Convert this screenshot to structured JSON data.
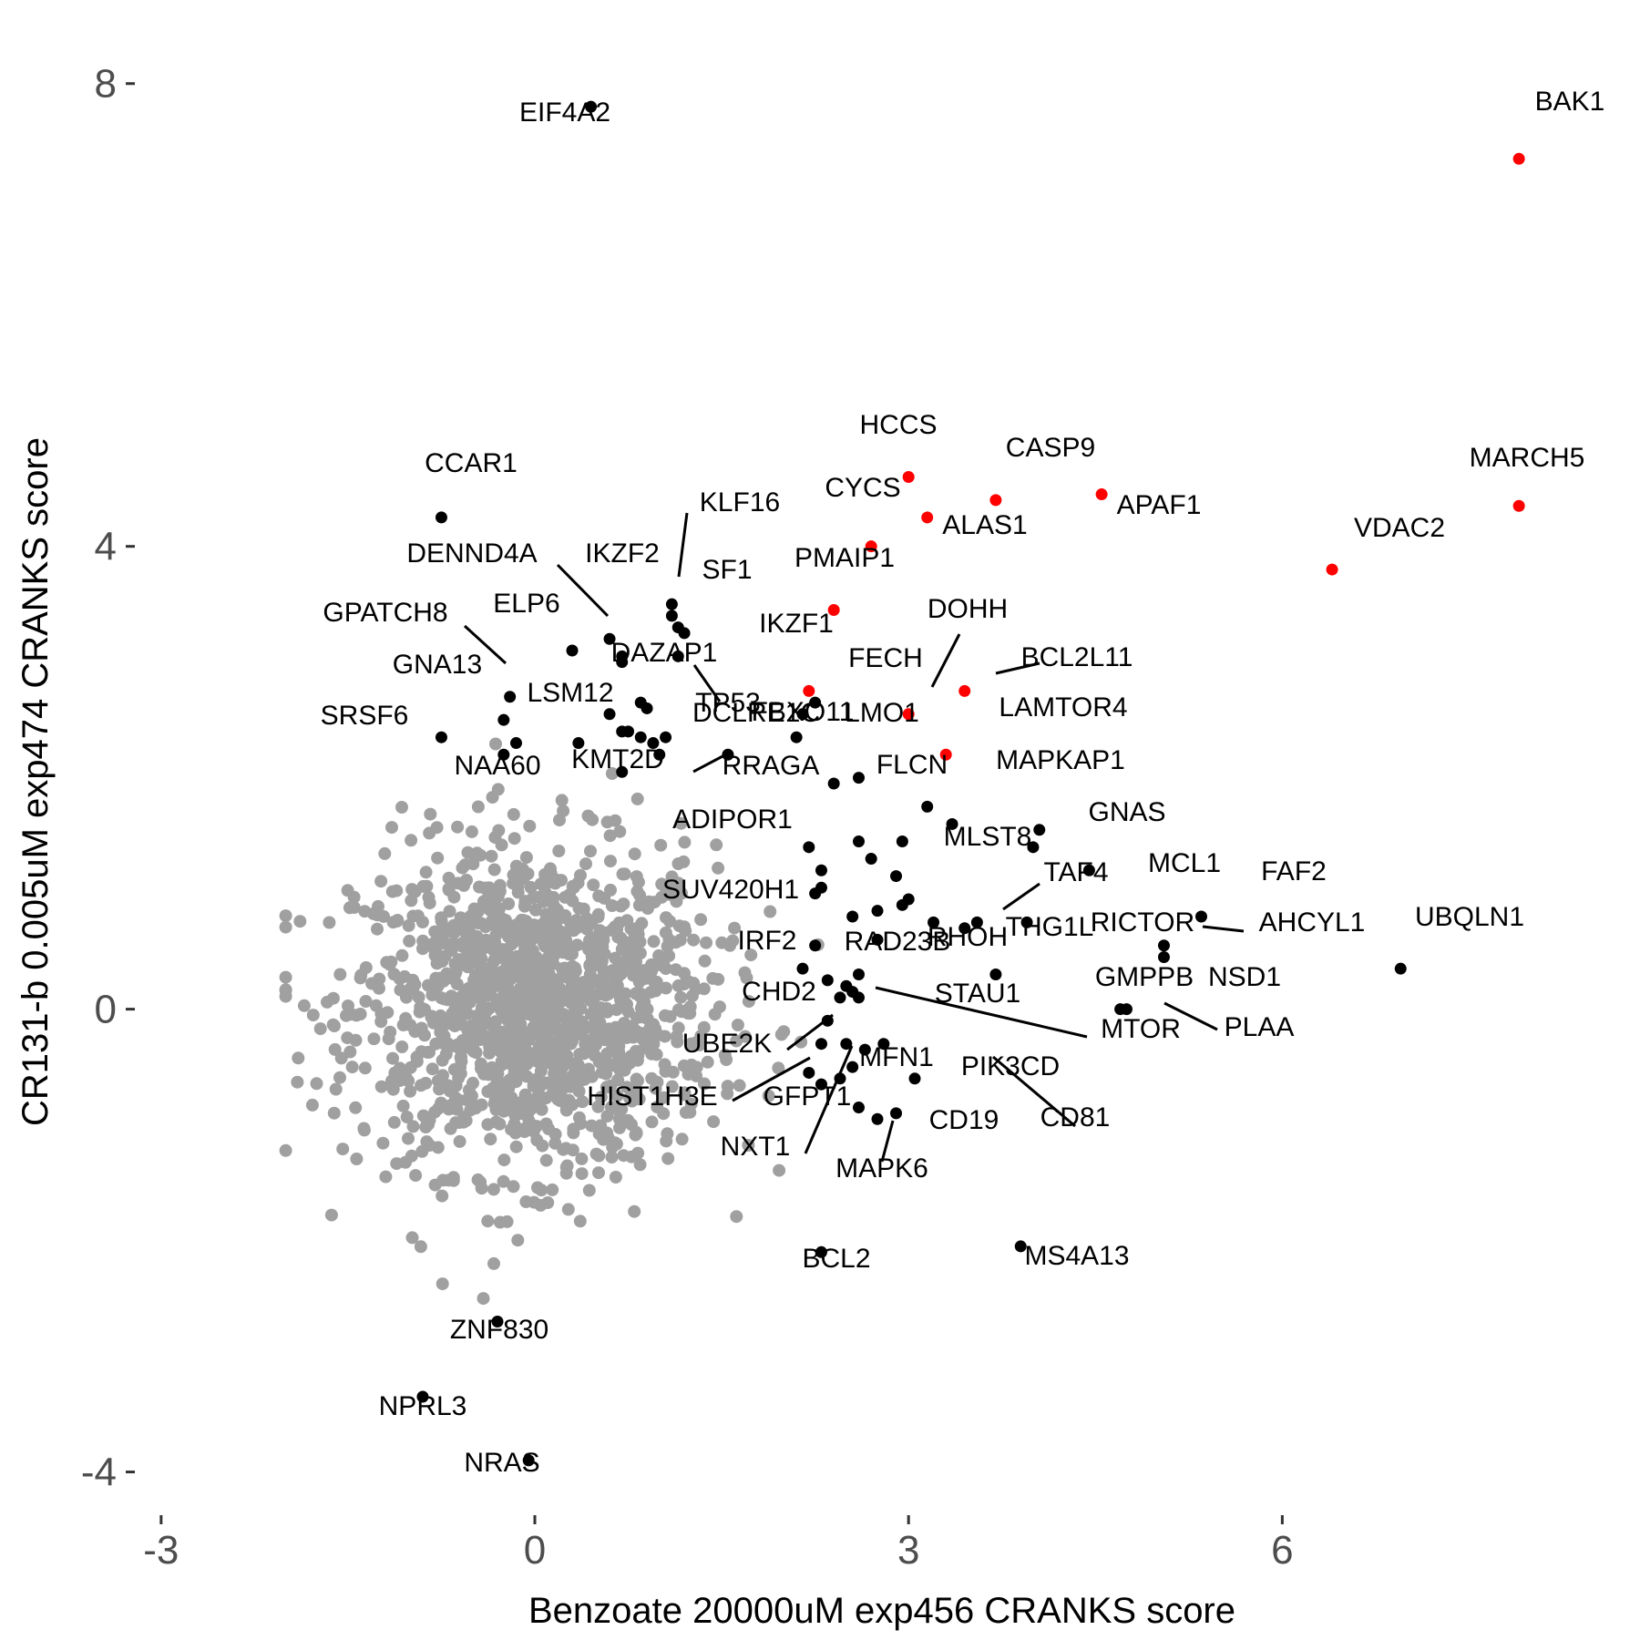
{
  "chart_data": {
    "type": "scatter",
    "xlabel": "Benzoate 20000uM exp456 CRANKS score",
    "ylabel": "CR131-b 0.005uM exp474 CRANKS score",
    "xlim": [
      -3.05,
      8.25
    ],
    "ylim": [
      -4.35,
      8.25
    ],
    "x_ticks": [
      {
        "value": -3,
        "label": "-3"
      },
      {
        "value": 0,
        "label": "0"
      },
      {
        "value": 3,
        "label": "3"
      },
      {
        "value": 6,
        "label": "6"
      }
    ],
    "y_ticks": [
      {
        "value": -4,
        "label": "-4"
      },
      {
        "value": 0,
        "label": "0"
      },
      {
        "value": 4,
        "label": "4"
      },
      {
        "value": 8,
        "label": "8"
      }
    ],
    "grid": false,
    "legend": "none",
    "colors": {
      "background_points": "#a0a0a0",
      "hit_points": "#000000",
      "top_hit_points": "#ff0000",
      "tick_text": "#4d4d4d"
    },
    "background_cloud": {
      "description_role": "unlabeled genes",
      "count": 1400,
      "x_center": 0.0,
      "y_center": 0.0,
      "x_sd": 0.72,
      "y_sd": 0.7
    },
    "labeled_points": [
      {
        "gene": "BAK1",
        "x": 7.9,
        "y": 7.35,
        "color": "red"
      },
      {
        "gene": "MARCH5",
        "x": 7.9,
        "y": 4.35,
        "color": "red"
      },
      {
        "gene": "VDAC2",
        "x": 6.4,
        "y": 3.8,
        "color": "red"
      },
      {
        "gene": "APAF1",
        "x": 4.55,
        "y": 4.45,
        "color": "red"
      },
      {
        "gene": "CASP9",
        "x": 3.7,
        "y": 4.4,
        "color": "red"
      },
      {
        "gene": "HCCS",
        "x": 3.0,
        "y": 4.6,
        "color": "red"
      },
      {
        "gene": "ALAS1",
        "x": 3.15,
        "y": 4.25,
        "color": "red"
      },
      {
        "gene": "CYCS",
        "x": 2.7,
        "y": 4.0,
        "color": "red"
      },
      {
        "gene": "PMAIP1",
        "x": 2.4,
        "y": 3.45,
        "color": "red"
      },
      {
        "gene": "IKZF1",
        "x": 2.2,
        "y": 2.75,
        "color": "red"
      },
      {
        "gene": "DOHH",
        "x": 3.0,
        "y": 2.55,
        "color": "red"
      },
      {
        "gene": "BCL2L11",
        "x": 3.45,
        "y": 2.75,
        "color": "red"
      },
      {
        "gene": "LAMTOR4",
        "x": 3.3,
        "y": 2.2,
        "color": "red"
      },
      {
        "gene": "EIF4A2",
        "x": 0.45,
        "y": 7.8,
        "color": "black"
      },
      {
        "gene": "CCAR1",
        "x": -0.75,
        "y": 4.25,
        "color": "black"
      },
      {
        "gene": "DENND4A",
        "x": 0.6,
        "y": 3.2,
        "color": "black"
      },
      {
        "gene": "IKZF2",
        "x": 0.7,
        "y": 3.0,
        "color": "black"
      },
      {
        "gene": "KLF16",
        "x": 1.1,
        "y": 3.5,
        "color": "black"
      },
      {
        "gene": "SF1",
        "x": 1.15,
        "y": 3.3,
        "color": "black"
      },
      {
        "gene": "ELP6",
        "x": 0.3,
        "y": 3.1,
        "color": "black"
      },
      {
        "gene": "GPATCH8",
        "x": -0.2,
        "y": 2.7,
        "color": "black"
      },
      {
        "gene": "GNA13",
        "x": -0.25,
        "y": 2.5,
        "color": "black"
      },
      {
        "gene": "DAZAP1",
        "x": 1.15,
        "y": 3.05,
        "color": "black"
      },
      {
        "gene": "LSM12",
        "x": 0.7,
        "y": 2.4,
        "color": "black"
      },
      {
        "gene": "SRSF6",
        "x": -0.75,
        "y": 2.35,
        "color": "black"
      },
      {
        "gene": "TP53",
        "x": 1.05,
        "y": 2.35,
        "color": "black"
      },
      {
        "gene": "NAA60",
        "x": -0.25,
        "y": 2.2,
        "color": "black"
      },
      {
        "gene": "KMT2D",
        "x": 1.0,
        "y": 2.2,
        "color": "black"
      },
      {
        "gene": "FBXO11",
        "x": 1.55,
        "y": 2.2,
        "color": "black"
      },
      {
        "gene": "RRAGA",
        "x": 2.1,
        "y": 2.35,
        "color": "black"
      },
      {
        "gene": "FECH",
        "x": 2.15,
        "y": 2.55,
        "color": "black"
      },
      {
        "gene": "DCLRE1C",
        "x": 2.4,
        "y": 1.95,
        "color": "black"
      },
      {
        "gene": "LMO1",
        "x": 2.6,
        "y": 2.0,
        "color": "black"
      },
      {
        "gene": "FLCN",
        "x": 3.15,
        "y": 1.75,
        "color": "black"
      },
      {
        "gene": "ADIPOR1",
        "x": 2.2,
        "y": 1.4,
        "color": "black"
      },
      {
        "gene": "MAPKAP1",
        "x": 3.35,
        "y": 1.6,
        "color": "black"
      },
      {
        "gene": "GNAS",
        "x": 4.05,
        "y": 1.55,
        "color": "black"
      },
      {
        "gene": "MLST8",
        "x": 4.0,
        "y": 1.4,
        "color": "black"
      },
      {
        "gene": "MCL1",
        "x": 4.45,
        "y": 1.2,
        "color": "black"
      },
      {
        "gene": "FAF2",
        "x": 5.35,
        "y": 0.8,
        "color": "black"
      },
      {
        "gene": "SUV420H1",
        "x": 2.25,
        "y": 1.0,
        "color": "black"
      },
      {
        "gene": "TAF4",
        "x": 3.45,
        "y": 0.7,
        "color": "black"
      },
      {
        "gene": "THG1L",
        "x": 3.2,
        "y": 0.75,
        "color": "black"
      },
      {
        "gene": "RICTOR",
        "x": 3.95,
        "y": 0.75,
        "color": "black"
      },
      {
        "gene": "AHCYL1",
        "x": 5.05,
        "y": 0.55,
        "color": "black"
      },
      {
        "gene": "UBQLN1",
        "x": 6.95,
        "y": 0.35,
        "color": "black"
      },
      {
        "gene": "NSD1",
        "x": 5.05,
        "y": 0.45,
        "color": "black"
      },
      {
        "gene": "RHOH",
        "x": 3.7,
        "y": 0.3,
        "color": "black"
      },
      {
        "gene": "IRF2",
        "x": 2.15,
        "y": 0.35,
        "color": "black"
      },
      {
        "gene": "RAD23B",
        "x": 2.5,
        "y": 0.2,
        "color": "black"
      },
      {
        "gene": "GMPPB",
        "x": 4.7,
        "y": 0.0,
        "color": "black"
      },
      {
        "gene": "PLAA",
        "x": 4.75,
        "y": 0.0,
        "color": "black"
      },
      {
        "gene": "STAU1",
        "x": 2.55,
        "y": 0.15,
        "color": "black"
      },
      {
        "gene": "MTOR",
        "x": 2.6,
        "y": 0.1,
        "color": "black"
      },
      {
        "gene": "CHD2",
        "x": 2.35,
        "y": -0.1,
        "color": "black"
      },
      {
        "gene": "UBE2K",
        "x": 2.3,
        "y": -0.3,
        "color": "black"
      },
      {
        "gene": "HIST1H3E",
        "x": 2.2,
        "y": -0.55,
        "color": "black"
      },
      {
        "gene": "PIK3CD",
        "x": 2.8,
        "y": -0.3,
        "color": "black"
      },
      {
        "gene": "CD81",
        "x": 3.05,
        "y": -0.6,
        "color": "black"
      },
      {
        "gene": "MFN1",
        "x": 2.6,
        "y": -0.85,
        "color": "black"
      },
      {
        "gene": "GFPT1",
        "x": 2.55,
        "y": -0.5,
        "color": "black"
      },
      {
        "gene": "CD19",
        "x": 2.9,
        "y": -0.9,
        "color": "black"
      },
      {
        "gene": "MAPK6",
        "x": 2.75,
        "y": -0.95,
        "color": "black"
      },
      {
        "gene": "NXT1",
        "x": 2.45,
        "y": -0.6,
        "color": "black"
      },
      {
        "gene": "BCL2",
        "x": 2.3,
        "y": -2.1,
        "color": "black"
      },
      {
        "gene": "MS4A13",
        "x": 3.9,
        "y": -2.05,
        "color": "black"
      },
      {
        "gene": "ZNF830",
        "x": -0.3,
        "y": -2.7,
        "color": "black"
      },
      {
        "gene": "NPRL3",
        "x": -0.9,
        "y": -3.35,
        "color": "black"
      },
      {
        "gene": "NRAS",
        "x": -0.05,
        "y": -3.9,
        "color": "black"
      }
    ],
    "unlabeled_hits": [
      {
        "x": 1.1,
        "y": 3.4
      },
      {
        "x": 0.7,
        "y": 3.05
      },
      {
        "x": 1.2,
        "y": 3.25
      },
      {
        "x": 0.85,
        "y": 2.65
      },
      {
        "x": 0.9,
        "y": 2.6
      },
      {
        "x": 0.75,
        "y": 2.4
      },
      {
        "x": 0.6,
        "y": 2.55
      },
      {
        "x": 0.85,
        "y": 2.35
      },
      {
        "x": 0.95,
        "y": 2.3
      },
      {
        "x": -0.15,
        "y": 2.3
      },
      {
        "x": 0.35,
        "y": 2.3
      },
      {
        "x": 0.7,
        "y": 2.05
      },
      {
        "x": 2.25,
        "y": 2.65
      },
      {
        "x": 2.3,
        "y": 1.2
      },
      {
        "x": 2.6,
        "y": 1.45
      },
      {
        "x": 2.7,
        "y": 1.3
      },
      {
        "x": 2.95,
        "y": 1.45
      },
      {
        "x": 2.9,
        "y": 1.15
      },
      {
        "x": 2.3,
        "y": 1.05
      },
      {
        "x": 2.55,
        "y": 0.8
      },
      {
        "x": 2.75,
        "y": 0.85
      },
      {
        "x": 2.95,
        "y": 0.9
      },
      {
        "x": 3.0,
        "y": 0.95
      },
      {
        "x": 2.25,
        "y": 0.55
      },
      {
        "x": 3.55,
        "y": 0.75
      },
      {
        "x": 2.6,
        "y": 0.3
      },
      {
        "x": 2.35,
        "y": 0.25
      },
      {
        "x": 2.75,
        "y": 0.6
      },
      {
        "x": 2.45,
        "y": 0.1
      },
      {
        "x": 2.5,
        "y": -0.3
      },
      {
        "x": 2.65,
        "y": -0.35
      },
      {
        "x": 2.3,
        "y": -0.65
      }
    ]
  }
}
